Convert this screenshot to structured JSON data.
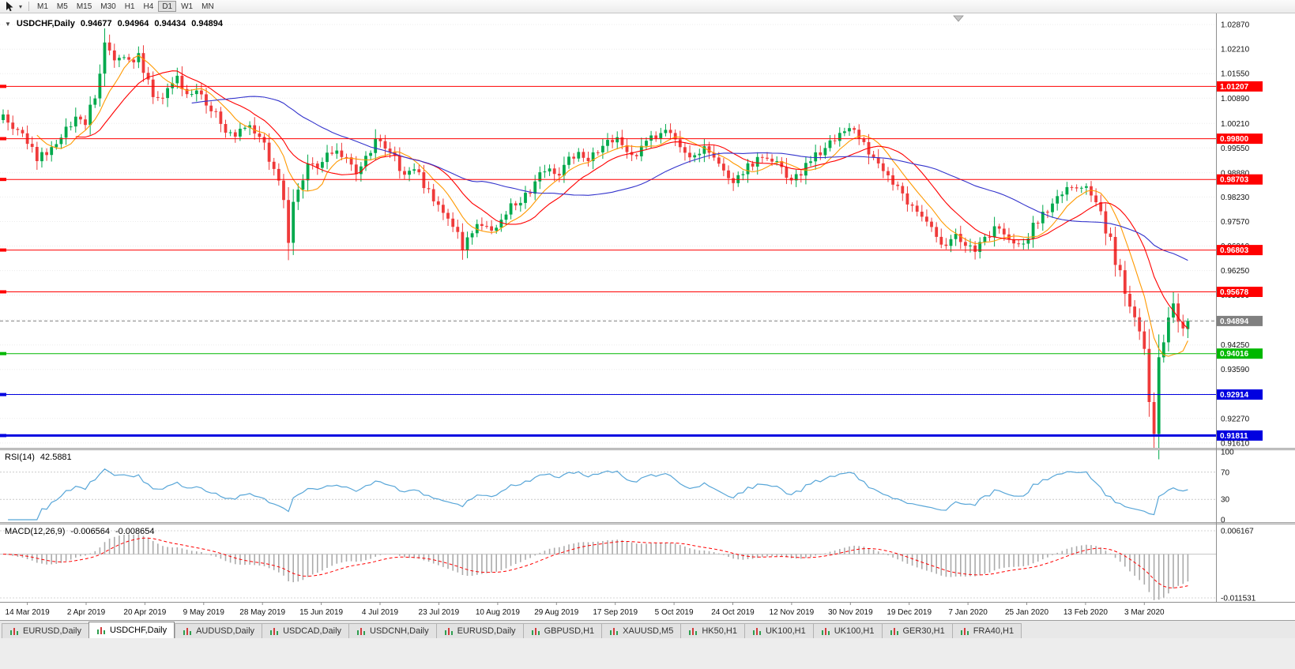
{
  "toolbar": {
    "timeframes": [
      "M1",
      "M5",
      "M15",
      "M30",
      "H1",
      "H4",
      "D1",
      "W1",
      "MN"
    ],
    "active_timeframe": "D1",
    "cursor_dropdown_icon": "▾"
  },
  "chart": {
    "title": "USDCHF,Daily",
    "open": "0.94677",
    "high": "0.94964",
    "low": "0.94434",
    "close": "0.94894",
    "collapse_icon": "▼"
  },
  "chart_data": {
    "type": "candlestick",
    "symbol": "USDCHF",
    "timeframe": "Daily",
    "num_candles": 246,
    "price_range": [
      0.9148,
      1.0317
    ],
    "up_color": "#00A94C",
    "down_color": "#EF3A3A",
    "last_candle": {
      "open": 0.94677,
      "high": 0.94964,
      "low": 0.94434,
      "close": 0.94894
    },
    "forced_extremes": [
      {
        "i": 238,
        "low": 0.9182
      },
      {
        "i": 242,
        "high": 0.9567
      }
    ],
    "close_anchors": [
      [
        0,
        1.0035
      ],
      [
        2,
        1.0005
      ],
      [
        4,
        0.999
      ],
      [
        7,
        0.9925
      ],
      [
        9,
        0.9945
      ],
      [
        12,
        0.9985
      ],
      [
        15,
        1.004
      ],
      [
        17,
        1.002
      ],
      [
        19,
        1.011
      ],
      [
        21,
        1.023
      ],
      [
        23,
        1.018
      ],
      [
        25,
        1.021
      ],
      [
        27,
        1.0185
      ],
      [
        28,
        1.0215
      ],
      [
        30,
        1.013
      ],
      [
        32,
        1.008
      ],
      [
        34,
        1.012
      ],
      [
        36,
        1.015
      ],
      [
        38,
        1.01
      ],
      [
        40,
        1.012
      ],
      [
        42,
        1.008
      ],
      [
        44,
        1.004
      ],
      [
        46,
        1.0
      ],
      [
        48,
        0.9975
      ],
      [
        50,
        1.002
      ],
      [
        52,
        1.0
      ],
      [
        54,
        0.9975
      ],
      [
        56,
        0.99
      ],
      [
        58,
        0.979
      ],
      [
        59,
        0.9725
      ],
      [
        61,
        0.985
      ],
      [
        63,
        0.992
      ],
      [
        65,
        0.991
      ],
      [
        67,
        0.9935
      ],
      [
        69,
        0.995
      ],
      [
        71,
        0.992
      ],
      [
        73,
        0.988
      ],
      [
        75,
        0.993
      ],
      [
        77,
        0.9985
      ],
      [
        79,
        0.996
      ],
      [
        81,
        0.9925
      ],
      [
        83,
        0.987
      ],
      [
        85,
        0.9895
      ],
      [
        87,
        0.986
      ],
      [
        89,
        0.9815
      ],
      [
        91,
        0.979
      ],
      [
        93,
        0.974
      ],
      [
        95,
        0.9685
      ],
      [
        97,
        0.972
      ],
      [
        99,
        0.9755
      ],
      [
        101,
        0.973
      ],
      [
        103,
        0.977
      ],
      [
        105,
        0.9795
      ],
      [
        107,
        0.981
      ],
      [
        109,
        0.9845
      ],
      [
        111,
        0.988
      ],
      [
        113,
        0.9905
      ],
      [
        115,
        0.988
      ],
      [
        117,
        0.992
      ],
      [
        119,
        0.995
      ],
      [
        121,
        0.992
      ],
      [
        123,
        0.9945
      ],
      [
        125,
        0.997
      ],
      [
        127,
        0.999
      ],
      [
        129,
        0.9955
      ],
      [
        131,
        0.9935
      ],
      [
        133,
        0.9965
      ],
      [
        135,
        0.999
      ],
      [
        137,
        1.0
      ],
      [
        139,
        0.9975
      ],
      [
        141,
        0.9945
      ],
      [
        143,
        0.993
      ],
      [
        145,
        0.996
      ],
      [
        147,
        0.993
      ],
      [
        149,
        0.9895
      ],
      [
        151,
        0.987
      ],
      [
        153,
        0.989
      ],
      [
        155,
        0.9915
      ],
      [
        157,
        0.9935
      ],
      [
        159,
        0.9925
      ],
      [
        161,
        0.9905
      ],
      [
        163,
        0.987
      ],
      [
        165,
        0.989
      ],
      [
        167,
        0.992
      ],
      [
        169,
        0.9945
      ],
      [
        171,
        0.997
      ],
      [
        173,
        0.9995
      ],
      [
        175,
        1.0015
      ],
      [
        177,
        0.9985
      ],
      [
        179,
        0.995
      ],
      [
        181,
        0.992
      ],
      [
        183,
        0.988
      ],
      [
        185,
        0.985
      ],
      [
        187,
        0.9815
      ],
      [
        189,
        0.979
      ],
      [
        191,
        0.975
      ],
      [
        193,
        0.9715
      ],
      [
        195,
        0.969
      ],
      [
        197,
        0.972
      ],
      [
        199,
        0.97
      ],
      [
        201,
        0.968
      ],
      [
        203,
        0.9705
      ],
      [
        205,
        0.974
      ],
      [
        207,
        0.972
      ],
      [
        209,
        0.969
      ],
      [
        211,
        0.9705
      ],
      [
        213,
        0.9745
      ],
      [
        215,
        0.978
      ],
      [
        217,
        0.9805
      ],
      [
        219,
        0.983
      ],
      [
        221,
        0.985
      ],
      [
        223,
        0.9855
      ],
      [
        225,
        0.9825
      ],
      [
        227,
        0.9775
      ],
      [
        229,
        0.97
      ],
      [
        231,
        0.962
      ],
      [
        233,
        0.953
      ],
      [
        235,
        0.945
      ],
      [
        236,
        0.9395
      ],
      [
        237,
        0.929
      ],
      [
        238,
        0.919
      ],
      [
        239,
        0.934
      ],
      [
        240,
        0.943
      ],
      [
        241,
        0.948
      ],
      [
        242,
        0.9545
      ],
      [
        243,
        0.95
      ],
      [
        244,
        0.9445
      ],
      [
        245,
        0.94894
      ]
    ],
    "moving_averages": [
      {
        "period": 8,
        "color": "#FF9900"
      },
      {
        "period": 16,
        "color": "#FF0000"
      },
      {
        "period": 40,
        "color": "#3333CC"
      }
    ],
    "h_lines": [
      {
        "price": 1.01207,
        "label": "1.01207",
        "color": "#FF0000",
        "width": 1,
        "marker": true,
        "name": "resistance-line-1"
      },
      {
        "price": 0.998,
        "label": "0.99800",
        "color": "#FF0000",
        "width": 1,
        "marker": true,
        "name": "resistance-line-2"
      },
      {
        "price": 0.98703,
        "label": "0.98703",
        "color": "#FF0000",
        "width": 1,
        "marker": true,
        "name": "resistance-line-3"
      },
      {
        "price": 0.96803,
        "label": "0.96803",
        "color": "#FF0000",
        "width": 1,
        "marker": true,
        "name": "resistance-line-4"
      },
      {
        "price": 0.95678,
        "label": "0.95678",
        "color": "#FF0000",
        "width": 1,
        "marker": true,
        "name": "resistance-line-5"
      },
      {
        "price": 0.94894,
        "label": "0.94894",
        "color": "#808080",
        "width": 1,
        "style": "dash",
        "marker": false,
        "name": "current-price-line"
      },
      {
        "price": 0.94016,
        "label": "0.94016",
        "color": "#00B800",
        "width": 1,
        "marker": true,
        "name": "support-line-green"
      },
      {
        "price": 0.92914,
        "label": "0.92914",
        "color": "#0000E0",
        "width": 1,
        "marker": true,
        "name": "support-line-blue-1"
      },
      {
        "price": 0.91811,
        "label": "0.91811",
        "color": "#0000E0",
        "width": 3,
        "marker": true,
        "name": "support-line-blue-2"
      }
    ],
    "y_axis_labels": [
      "1.02870",
      "1.02210",
      "1.01550",
      "1.00890",
      "1.00210",
      "0.99550",
      "0.98880",
      "0.98230",
      "0.97570",
      "0.96910",
      "0.96250",
      "0.95590",
      "0.94930",
      "0.94250",
      "0.93590",
      "0.92930",
      "0.92270",
      "0.91610"
    ],
    "x_axis_labels": [
      "14 Mar 2019",
      "2 Apr 2019",
      "20 Apr 2019",
      "9 May 2019",
      "28 May 2019",
      "15 Jun 2019",
      "4 Jul 2019",
      "23 Jul 2019",
      "10 Aug 2019",
      "29 Aug 2019",
      "17 Sep 2019",
      "5 Oct 2019",
      "24 Oct 2019",
      "12 Nov 2019",
      "30 Nov 2019",
      "19 Dec 2019",
      "7 Jan 2020",
      "25 Jan 2020",
      "13 Feb 2020",
      "3 Mar 2020"
    ],
    "indicators": {
      "rsi": {
        "label": "RSI(14)",
        "value": "42.5881",
        "period": 14,
        "levels": [
          "100",
          "70",
          "30",
          "0"
        ],
        "color": "#58A6D8"
      },
      "macd": {
        "label": "MACD(12,26,9)",
        "value_main": "-0.006564",
        "value_signal": "-0.008654",
        "scale_top": "0.006167",
        "scale_bottom": "-0.011531",
        "hist_color": "#ABABAB",
        "signal_color": "#FF0000"
      }
    }
  },
  "tabs": {
    "active_index": 1,
    "items": [
      "EURUSD,Daily",
      "USDCHF,Daily",
      "AUDUSD,Daily",
      "USDCAD,Daily",
      "USDCNH,Daily",
      "EURUSD,Daily",
      "GBPUSD,H1",
      "XAUUSD,M5",
      "HK50,H1",
      "UK100,H1",
      "UK100,H1",
      "GER30,H1",
      "FRA40,H1"
    ]
  }
}
